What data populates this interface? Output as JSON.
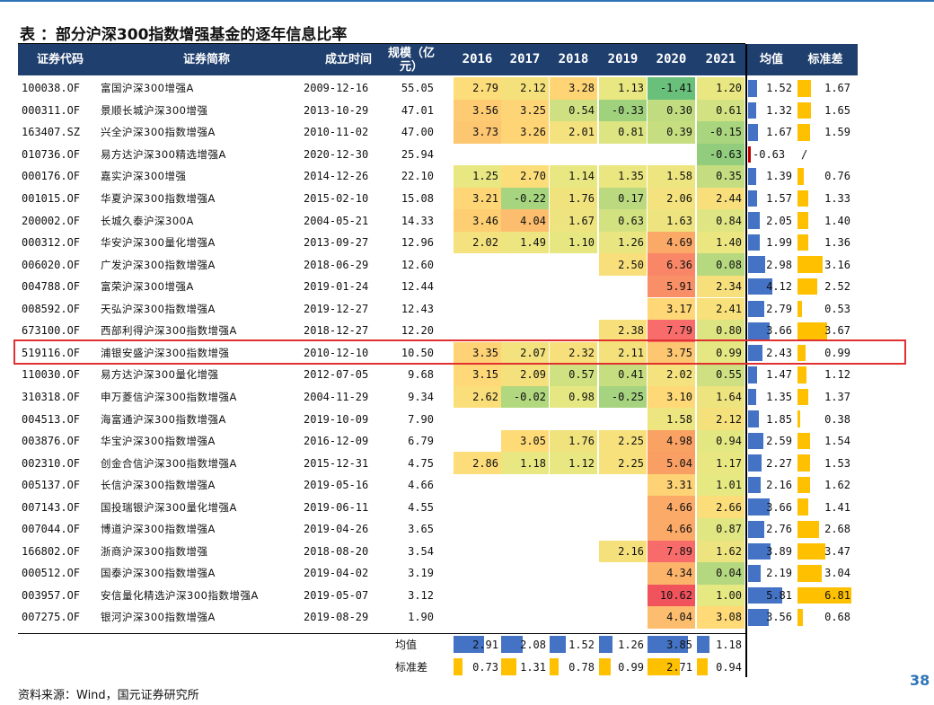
{
  "title": "表 ：部分沪深300指数增强基金的逐年信息比率",
  "columns": {
    "code": "证券代码",
    "name": "证券简称",
    "date": "成立时间",
    "scale": "规模（亿元）",
    "years": [
      "2016",
      "2017",
      "2018",
      "2019",
      "2020",
      "2021"
    ],
    "mean": "均值",
    "std": "标准差"
  },
  "rows": [
    {
      "code": "100038.OF",
      "name": "富国沪深300增强A",
      "date": "2009-12-16",
      "scale": "55.05",
      "y": [
        "2.79",
        "2.12",
        "3.28",
        "1.13",
        "-1.41",
        "1.20"
      ],
      "mean": "1.52",
      "std": "1.67"
    },
    {
      "code": "000311.OF",
      "name": "景顺长城沪深300增强",
      "date": "2013-10-29",
      "scale": "47.01",
      "y": [
        "3.56",
        "3.25",
        "0.54",
        "-0.33",
        "0.30",
        "0.61"
      ],
      "mean": "1.32",
      "std": "1.65"
    },
    {
      "code": "163407.SZ",
      "name": "兴全沪深300指数增强A",
      "date": "2010-11-02",
      "scale": "47.00",
      "y": [
        "3.73",
        "3.26",
        "2.01",
        "0.81",
        "0.39",
        "-0.15"
      ],
      "mean": "1.67",
      "std": "1.59"
    },
    {
      "code": "010736.OF",
      "name": "易方达沪深300精选增强A",
      "date": "2020-12-30",
      "scale": "25.94",
      "y": [
        "",
        "",
        "",
        "",
        "",
        "-0.63"
      ],
      "mean": "-0.63",
      "std": "/"
    },
    {
      "code": "000176.OF",
      "name": "嘉实沪深300增强",
      "date": "2014-12-26",
      "scale": "22.10",
      "y": [
        "1.25",
        "2.70",
        "1.14",
        "1.35",
        "1.58",
        "0.35"
      ],
      "mean": "1.39",
      "std": "0.76"
    },
    {
      "code": "001015.OF",
      "name": "华夏沪深300指数增强A",
      "date": "2015-02-10",
      "scale": "15.08",
      "y": [
        "3.21",
        "-0.22",
        "1.76",
        "0.17",
        "2.06",
        "2.44"
      ],
      "mean": "1.57",
      "std": "1.33"
    },
    {
      "code": "200002.OF",
      "name": "长城久泰沪深300A",
      "date": "2004-05-21",
      "scale": "14.33",
      "y": [
        "3.46",
        "4.04",
        "1.67",
        "0.63",
        "1.63",
        "0.84"
      ],
      "mean": "2.05",
      "std": "1.40"
    },
    {
      "code": "000312.OF",
      "name": "华安沪深300量化增强A",
      "date": "2013-09-27",
      "scale": "12.96",
      "y": [
        "2.02",
        "1.49",
        "1.10",
        "1.26",
        "4.69",
        "1.40"
      ],
      "mean": "1.99",
      "std": "1.36"
    },
    {
      "code": "006020.OF",
      "name": "广发沪深300指数增强A",
      "date": "2018-06-29",
      "scale": "12.60",
      "y": [
        "",
        "",
        "",
        "2.50",
        "6.36",
        "0.08"
      ],
      "mean": "2.98",
      "std": "3.16"
    },
    {
      "code": "004788.OF",
      "name": "富荣沪深300增强A",
      "date": "2019-01-24",
      "scale": "12.44",
      "y": [
        "",
        "",
        "",
        "",
        "5.91",
        "2.34"
      ],
      "mean": "4.12",
      "std": "2.52"
    },
    {
      "code": "008592.OF",
      "name": "天弘沪深300指数增强A",
      "date": "2019-12-27",
      "scale": "12.43",
      "y": [
        "",
        "",
        "",
        "",
        "3.17",
        "2.41"
      ],
      "mean": "2.79",
      "std": "0.53"
    },
    {
      "code": "673100.OF",
      "name": "西部利得沪深300指数增强A",
      "date": "2018-12-27",
      "scale": "12.20",
      "y": [
        "",
        "",
        "",
        "2.38",
        "7.79",
        "0.80"
      ],
      "mean": "3.66",
      "std": "3.67"
    },
    {
      "code": "519116.OF",
      "name": "浦银安盛沪深300指数增强",
      "date": "2010-12-10",
      "scale": "10.50",
      "y": [
        "3.35",
        "2.07",
        "2.32",
        "2.11",
        "3.75",
        "0.99"
      ],
      "mean": "2.43",
      "std": "0.99"
    },
    {
      "code": "110030.OF",
      "name": "易方达沪深300量化增强",
      "date": "2012-07-05",
      "scale": "9.68",
      "y": [
        "3.15",
        "2.09",
        "0.57",
        "0.41",
        "2.02",
        "0.55"
      ],
      "mean": "1.47",
      "std": "1.12"
    },
    {
      "code": "310318.OF",
      "name": "申万菱信沪深300指数增强A",
      "date": "2004-11-29",
      "scale": "9.34",
      "y": [
        "2.62",
        "-0.02",
        "0.98",
        "-0.25",
        "3.10",
        "1.64"
      ],
      "mean": "1.35",
      "std": "1.37"
    },
    {
      "code": "004513.OF",
      "name": "海富通沪深300指数增强A",
      "date": "2019-10-09",
      "scale": "7.90",
      "y": [
        "",
        "",
        "",
        "",
        "1.58",
        "2.12"
      ],
      "mean": "1.85",
      "std": "0.38"
    },
    {
      "code": "003876.OF",
      "name": "华宝沪深300指数增强A",
      "date": "2016-12-09",
      "scale": "6.79",
      "y": [
        "",
        "3.05",
        "1.76",
        "2.25",
        "4.98",
        "0.94"
      ],
      "mean": "2.59",
      "std": "1.54"
    },
    {
      "code": "002310.OF",
      "name": "创金合信沪深300指数增强A",
      "date": "2015-12-31",
      "scale": "4.75",
      "y": [
        "2.86",
        "1.18",
        "1.12",
        "2.25",
        "5.04",
        "1.17"
      ],
      "mean": "2.27",
      "std": "1.53"
    },
    {
      "code": "005137.OF",
      "name": "长信沪深300指数增强A",
      "date": "2019-05-16",
      "scale": "4.66",
      "y": [
        "",
        "",
        "",
        "",
        "3.31",
        "1.01"
      ],
      "mean": "2.16",
      "std": "1.62"
    },
    {
      "code": "007143.OF",
      "name": "国投瑞银沪深300量化增强A",
      "date": "2019-06-11",
      "scale": "4.55",
      "y": [
        "",
        "",
        "",
        "",
        "4.66",
        "2.66"
      ],
      "mean": "3.66",
      "std": "1.41"
    },
    {
      "code": "007044.OF",
      "name": "博道沪深300指数增强A",
      "date": "2019-04-26",
      "scale": "3.65",
      "y": [
        "",
        "",
        "",
        "",
        "4.66",
        "0.87"
      ],
      "mean": "2.76",
      "std": "2.68"
    },
    {
      "code": "166802.OF",
      "name": "浙商沪深300指数增强",
      "date": "2018-08-20",
      "scale": "3.54",
      "y": [
        "",
        "",
        "",
        "2.16",
        "7.89",
        "1.62"
      ],
      "mean": "3.89",
      "std": "3.47"
    },
    {
      "code": "000512.OF",
      "name": "国泰沪深300指数增强A",
      "date": "2019-04-02",
      "scale": "3.19",
      "y": [
        "",
        "",
        "",
        "",
        "4.34",
        "0.04"
      ],
      "mean": "2.19",
      "std": "3.04"
    },
    {
      "code": "003957.OF",
      "name": "安信量化精选沪深300指数增强A",
      "date": "2019-05-07",
      "scale": "3.12",
      "y": [
        "",
        "",
        "",
        "",
        "10.62",
        "1.00"
      ],
      "mean": "5.81",
      "std": "6.81"
    },
    {
      "code": "007275.OF",
      "name": "银河沪深300指数增强A",
      "date": "2019-08-29",
      "scale": "1.90",
      "y": [
        "",
        "",
        "",
        "",
        "4.04",
        "3.08"
      ],
      "mean": "3.56",
      "std": "0.68"
    }
  ],
  "summary": {
    "mean_label": "均值",
    "std_label": "标准差",
    "mean": [
      "2.91",
      "2.08",
      "1.52",
      "1.26",
      "3.85",
      "1.18"
    ],
    "std": [
      "0.73",
      "1.31",
      "0.78",
      "0.99",
      "2.71",
      "0.94"
    ]
  },
  "highlighted_row_code": "519116.OF",
  "source": "资料来源：Wind，国元证券研究所",
  "page_number": "38",
  "colors": {
    "header_bg": "#1f3f6e",
    "mean_bar": "#4472c4",
    "std_bar": "#ffc000",
    "negative_bar": "#c00000",
    "highlight_border": "#e0302f",
    "page_number": "#2e75b6"
  }
}
